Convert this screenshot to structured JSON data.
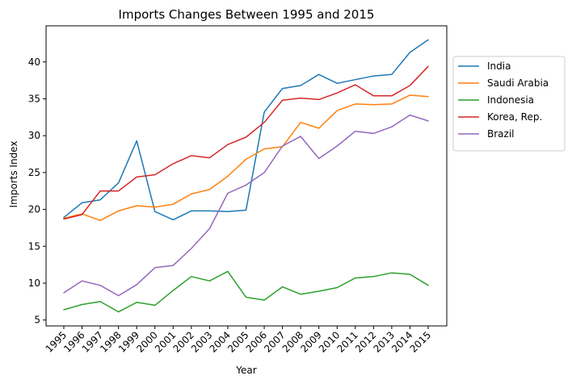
{
  "chart_data": {
    "type": "line",
    "title": "Imports Changes Between 1995 and 2015",
    "xlabel": "Year",
    "ylabel": "Imports Index",
    "x": [
      "1995",
      "1996",
      "1997",
      "1998",
      "1999",
      "2000",
      "2001",
      "2002",
      "2003",
      "2004",
      "2005",
      "2006",
      "2007",
      "2008",
      "2009",
      "2010",
      "2011",
      "2012",
      "2013",
      "2014",
      "2015"
    ],
    "ylim": [
      4.2,
      44.9
    ],
    "yticks": [
      5,
      10,
      15,
      20,
      25,
      30,
      35,
      40
    ],
    "grid": false,
    "legend_position": "outside-right",
    "series": [
      {
        "name": "India",
        "color": "#1f77b4",
        "values": [
          18.9,
          20.9,
          21.3,
          23.6,
          29.3,
          19.7,
          18.6,
          19.8,
          19.8,
          19.7,
          19.9,
          33.2,
          36.4,
          36.8,
          38.3,
          37.1,
          37.6,
          38.1,
          38.3,
          41.3,
          43.0
        ]
      },
      {
        "name": "Saudi Arabia",
        "color": "#ff7f0e",
        "values": [
          18.8,
          19.4,
          18.5,
          19.8,
          20.5,
          20.3,
          20.7,
          22.1,
          22.7,
          24.5,
          26.8,
          28.2,
          28.5,
          31.8,
          31.0,
          33.4,
          34.3,
          34.2,
          34.3,
          35.5,
          35.3
        ]
      },
      {
        "name": "Indonesia",
        "color": "#2ca02c",
        "values": [
          6.4,
          7.1,
          7.5,
          6.1,
          7.4,
          7.0,
          9.0,
          10.9,
          10.3,
          11.6,
          8.1,
          7.7,
          9.5,
          8.5,
          8.9,
          9.4,
          10.7,
          10.9,
          11.4,
          11.2,
          9.7
        ]
      },
      {
        "name": "Korea, Rep.",
        "color": "#d62728",
        "values": [
          18.7,
          19.3,
          22.5,
          22.5,
          24.4,
          24.7,
          26.2,
          27.3,
          27.0,
          28.8,
          29.8,
          31.8,
          34.8,
          35.1,
          34.9,
          35.8,
          36.9,
          35.4,
          35.4,
          36.8,
          39.4
        ]
      },
      {
        "name": "Brazil",
        "color": "#9467bd",
        "values": [
          8.7,
          10.3,
          9.7,
          8.3,
          9.8,
          12.1,
          12.4,
          14.7,
          17.4,
          22.2,
          23.3,
          25.0,
          28.6,
          29.9,
          26.9,
          28.6,
          30.6,
          30.3,
          31.2,
          32.8,
          32.0
        ]
      }
    ]
  }
}
